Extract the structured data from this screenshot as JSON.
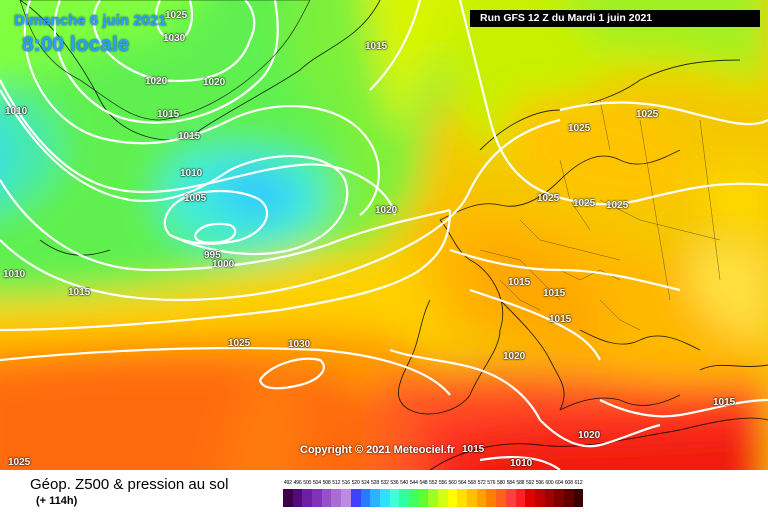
{
  "map": {
    "date_label": "Dimanche 6 juin 2021",
    "time_label": "8:00 locale",
    "run_label": "Run GFS 12 Z du Mardi 1 juin 2021",
    "copyright": "Copyright © 2021 Meteociel.fr",
    "isobar_labels": [
      {
        "id": "l1",
        "text": "1025"
      },
      {
        "id": "l2",
        "text": "1030"
      },
      {
        "id": "l3",
        "text": "1015"
      },
      {
        "id": "l4",
        "text": "1020"
      },
      {
        "id": "l5",
        "text": "1020"
      },
      {
        "id": "l6",
        "text": "1015"
      },
      {
        "id": "l7",
        "text": "1015"
      },
      {
        "id": "l8",
        "text": "1010"
      },
      {
        "id": "l9",
        "text": "1010"
      },
      {
        "id": "l10",
        "text": "1005"
      },
      {
        "id": "l11",
        "text": "995"
      },
      {
        "id": "l12",
        "text": "1000"
      },
      {
        "id": "l13",
        "text": "1020"
      },
      {
        "id": "l14",
        "text": "1010"
      },
      {
        "id": "l15",
        "text": "1015"
      },
      {
        "id": "l16",
        "text": "1025"
      },
      {
        "id": "l17",
        "text": "1030"
      },
      {
        "id": "l18",
        "text": "1025"
      },
      {
        "id": "l19",
        "text": "1025"
      },
      {
        "id": "l20",
        "text": "1025"
      },
      {
        "id": "l21",
        "text": "1025"
      },
      {
        "id": "l22",
        "text": "1015"
      },
      {
        "id": "l23",
        "text": "1015"
      },
      {
        "id": "l24",
        "text": "1015"
      },
      {
        "id": "l25",
        "text": "1020"
      },
      {
        "id": "l26",
        "text": "1015"
      },
      {
        "id": "l27",
        "text": "1020"
      },
      {
        "id": "l28",
        "text": "1015"
      },
      {
        "id": "l29",
        "text": "1010"
      },
      {
        "id": "l30",
        "text": "1025"
      }
    ]
  },
  "footer": {
    "field_name": "Géop. Z500 & pression au sol",
    "lead_time": "(+ 114h)"
  },
  "legend": {
    "values": [
      "492",
      "496",
      "500",
      "504",
      "508",
      "512",
      "516",
      "520",
      "524",
      "528",
      "532",
      "536",
      "540",
      "544",
      "548",
      "552",
      "556",
      "560",
      "564",
      "568",
      "572",
      "576",
      "580",
      "584",
      "588",
      "592",
      "596",
      "600",
      "604",
      "608",
      "612"
    ],
    "colors": [
      "#3c0046",
      "#550a78",
      "#6e1ea0",
      "#8232b4",
      "#9650c8",
      "#aa6ed2",
      "#be8cdc",
      "#4040ff",
      "#2a7aff",
      "#2ab4ff",
      "#30e0ff",
      "#40ffd8",
      "#30ffa0",
      "#40ff60",
      "#60ff30",
      "#a0ff20",
      "#d4ff10",
      "#ffff00",
      "#ffe000",
      "#ffc000",
      "#ffa000",
      "#ff8000",
      "#ff6020",
      "#ff4040",
      "#ff2020",
      "#e00000",
      "#c00000",
      "#a00000",
      "#800000",
      "#600000",
      "#3a0000"
    ]
  }
}
